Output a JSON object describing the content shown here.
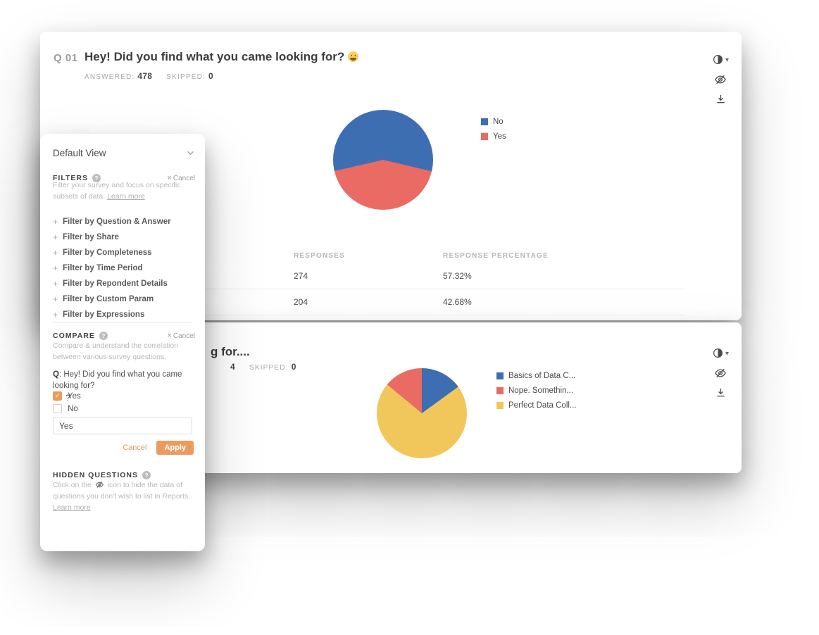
{
  "theme": {
    "accent_orange": "#EC9B60",
    "blue": "#3D6EB1",
    "red": "#E96B63",
    "yellow": "#F1C75B",
    "title_text": "#3D3D3D",
    "muted_text": "#B8B8B8"
  },
  "question1": {
    "number": "Q 01",
    "title": "Hey! Did you find what you came looking for?",
    "answered_label": "ANSWERED:",
    "answered_value": "478",
    "skipped_label": "SKIPPED:",
    "skipped_value": "0",
    "actions": [
      "chart-style-toggle",
      "hide-question",
      "download-report"
    ],
    "table": {
      "headers": {
        "responses": "RESPONSES",
        "percentage": "RESPONSE PERCENTAGE"
      },
      "rows": [
        {
          "responses": "274",
          "percentage": "57.32%"
        },
        {
          "responses": "204",
          "percentage": "42.68%"
        }
      ]
    }
  },
  "question2": {
    "title_fragment": "g for....",
    "answered_fragment": "4",
    "skipped_label": "SKIPPED:",
    "skipped_value": "0",
    "actions": [
      "chart-style-toggle",
      "hide-question",
      "download-report"
    ]
  },
  "panel": {
    "view_label": "Default View",
    "filters": {
      "title": "FILTERS",
      "cancel": "Cancel",
      "description": "Filter your survey and focus on specific subsets of data.",
      "learn_more": "Learn more",
      "items": [
        "Filter by Question & Answer",
        "Filter by Share",
        "Filter by Completeness",
        "Filter by Time Period",
        "Filter by Repondent Details",
        "Filter by Custom Param",
        "Filter by Expressions"
      ]
    },
    "compare": {
      "title": "COMPARE",
      "cancel": "Cancel",
      "description": "Compare & understand the correlation between various survey questions.",
      "question_prefix": "Q",
      "question_text": ": Hey! Did you find what you came looking for?",
      "question_suffix": "?",
      "options": [
        {
          "label": "Yes",
          "checked": true
        },
        {
          "label": "No",
          "checked": false
        }
      ],
      "input_value": "Yes",
      "cancel_button": "Cancel",
      "apply_button": "Apply"
    },
    "hidden": {
      "title": "HIDDEN QUESTIONS",
      "desc_before": "Click on the",
      "desc_after": "icon to hide the data of questions you don't wish to list in Reports.",
      "learn_more": "Learn more"
    }
  },
  "chart_data": [
    {
      "type": "pie",
      "title": "Hey! Did you find what you came looking for?",
      "start_deg": 257,
      "legend_position": "right",
      "slices": [
        {
          "label": "No",
          "color": "#3D6EB1",
          "pct": 57.32,
          "count": 274
        },
        {
          "label": "Yes",
          "color": "#E96B63",
          "pct": 42.68,
          "count": 204
        }
      ],
      "legend": [
        {
          "label": "No",
          "color": "#3D6EB1"
        },
        {
          "label": "Yes",
          "color": "#E96B63"
        }
      ]
    },
    {
      "type": "pie",
      "title": "",
      "start_deg": 0,
      "legend_position": "right",
      "slices": [
        {
          "label": "Basics of Data C...",
          "color": "#3D6EB1",
          "pct": 15
        },
        {
          "label": "Perfect Data Coll...",
          "color": "#F1C75B",
          "pct": 71
        },
        {
          "label": "Nope. Somethin...",
          "color": "#E96B63",
          "pct": 14
        }
      ],
      "legend": [
        {
          "label": "Basics of Data C...",
          "color": "#3D6EB1"
        },
        {
          "label": "Nope. Somethin...",
          "color": "#E96B63"
        },
        {
          "label": "Perfect Data Coll...",
          "color": "#F1C75B"
        }
      ]
    }
  ]
}
